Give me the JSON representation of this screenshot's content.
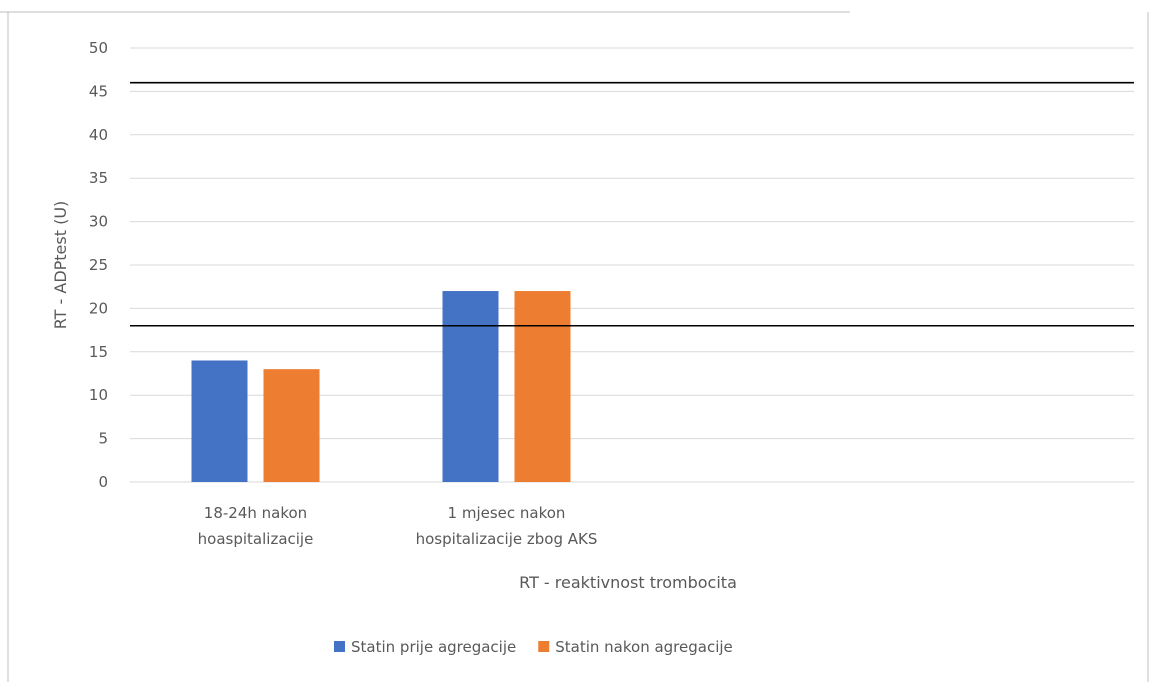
{
  "chart_data": {
    "type": "bar",
    "title": "",
    "xlabel": "RT - reaktivnost trombocita",
    "ylabel": "RT - ADPtest (U)",
    "ylim": [
      0,
      50
    ],
    "yticks": [
      0,
      5,
      10,
      15,
      20,
      25,
      30,
      35,
      40,
      45,
      50
    ],
    "grid": true,
    "legend_position": "bottom",
    "categories": [
      [
        "18-24h nakon",
        "hoaspitalizacije"
      ],
      [
        "1 mjesec nakon",
        "hospitalizacije zbog AKS"
      ],
      [
        ""
      ],
      [
        ""
      ]
    ],
    "series": [
      {
        "name": "Statin prije agregacije",
        "color": "#4472c4",
        "values": [
          14,
          22,
          null,
          null
        ]
      },
      {
        "name": "Statin nakon agregacije",
        "color": "#ed7d31",
        "values": [
          13,
          22,
          null,
          null
        ]
      }
    ],
    "reference_lines": [
      {
        "y": 46,
        "color": "#000000"
      },
      {
        "y": 18,
        "color": "#000000"
      }
    ],
    "gridline_color": "#d9d9d9"
  }
}
